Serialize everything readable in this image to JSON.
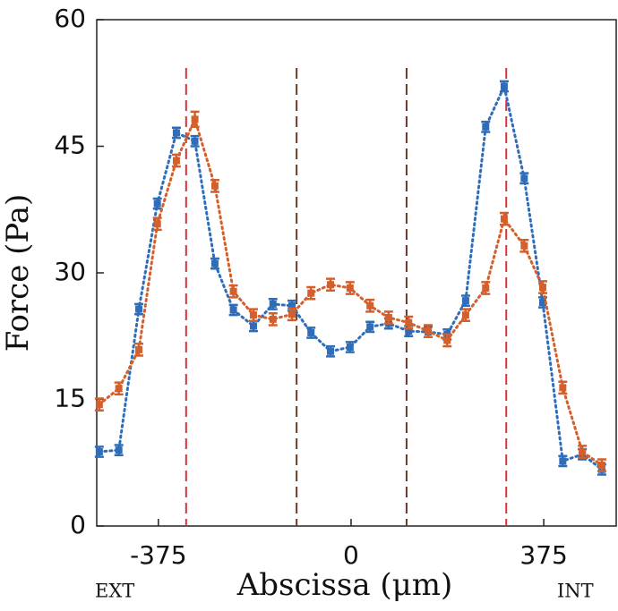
{
  "chart_data": {
    "type": "scatter",
    "xlabel": "Abscissa (μm)",
    "ylabel": "Force (Pa)",
    "annotations": [
      "EXT",
      "INT"
    ],
    "x": [
      -490,
      -452,
      -413,
      -377,
      -340,
      -304,
      -265,
      -229,
      -190,
      -152,
      -115,
      -78,
      -40,
      -2,
      37,
      73,
      112,
      150,
      187,
      223,
      262,
      298,
      337,
      373,
      412,
      450,
      488
    ],
    "series": [
      {
        "color": "#2f6db8",
        "values": [
          8.8,
          9.0,
          25.7,
          38.2,
          46.6,
          45.6,
          31.1,
          25.6,
          23.7,
          26.3,
          26.1,
          22.9,
          20.7,
          21.2,
          23.6,
          24.0,
          23.1,
          23.0,
          22.7,
          26.7,
          47.3,
          52.1,
          41.2,
          26.5,
          7.7,
          8.5,
          6.7
        ],
        "errors": [
          0.6,
          0.6,
          0.6,
          0.6,
          0.6,
          0.6,
          0.6,
          0.6,
          0.6,
          0.6,
          0.6,
          0.6,
          0.6,
          0.6,
          0.6,
          0.6,
          0.6,
          0.6,
          0.6,
          0.6,
          0.6,
          0.6,
          0.6,
          0.6,
          0.6,
          0.6,
          0.6
        ]
      },
      {
        "color": "#d3602c",
        "values": [
          14.4,
          16.3,
          20.9,
          35.8,
          43.3,
          48.2,
          40.3,
          27.8,
          25.0,
          24.5,
          25.1,
          27.6,
          28.6,
          28.2,
          26.1,
          24.7,
          24.1,
          23.1,
          22.0,
          25.0,
          28.2,
          36.4,
          33.2,
          28.3,
          16.4,
          8.8,
          7.2
        ],
        "errors": [
          0.7,
          0.7,
          0.7,
          0.7,
          0.7,
          0.9,
          0.7,
          0.7,
          0.7,
          0.7,
          0.7,
          0.7,
          0.7,
          0.7,
          0.7,
          0.7,
          0.7,
          0.7,
          0.7,
          0.7,
          0.7,
          0.7,
          0.7,
          0.7,
          0.7,
          0.7,
          0.7
        ]
      }
    ],
    "reference_lines": [
      {
        "x": -321,
        "color": "#d9323a"
      },
      {
        "x": 302,
        "color": "#d9323a"
      },
      {
        "x": -106,
        "color": "#6b3a22"
      },
      {
        "x": 108,
        "color": "#6b3a22"
      }
    ],
    "xlim": [
      -495,
      516
    ],
    "ylim": [
      0,
      60
    ],
    "xticks": [
      -375,
      0,
      375
    ],
    "yticks": [
      0,
      15,
      30,
      45,
      60
    ]
  }
}
